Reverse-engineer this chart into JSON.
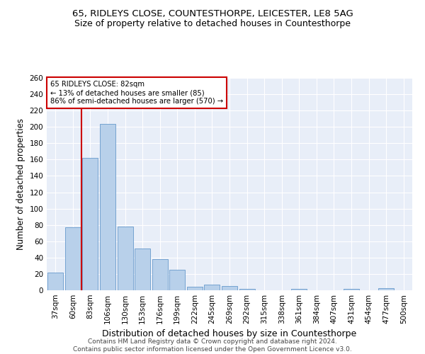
{
  "title1": "65, RIDLEYS CLOSE, COUNTESTHORPE, LEICESTER, LE8 5AG",
  "title2": "Size of property relative to detached houses in Countesthorpe",
  "xlabel": "Distribution of detached houses by size in Countesthorpe",
  "ylabel": "Number of detached properties",
  "footnote": "Contains HM Land Registry data © Crown copyright and database right 2024.\nContains public sector information licensed under the Open Government Licence v3.0.",
  "bar_labels": [
    "37sqm",
    "60sqm",
    "83sqm",
    "106sqm",
    "130sqm",
    "153sqm",
    "176sqm",
    "199sqm",
    "222sqm",
    "245sqm",
    "269sqm",
    "292sqm",
    "315sqm",
    "338sqm",
    "361sqm",
    "384sqm",
    "407sqm",
    "431sqm",
    "454sqm",
    "477sqm",
    "500sqm"
  ],
  "bar_values": [
    22,
    77,
    162,
    204,
    78,
    51,
    38,
    25,
    4,
    7,
    5,
    2,
    0,
    0,
    2,
    0,
    0,
    2,
    0,
    3,
    0
  ],
  "bar_color": "#b8d0ea",
  "bar_edgecolor": "#6699cc",
  "annotation_title": "65 RIDLEYS CLOSE: 82sqm",
  "annotation_line1": "← 13% of detached houses are smaller (85)",
  "annotation_line2": "86% of semi-detached houses are larger (570) →",
  "vline_color": "#cc0000",
  "annotation_box_color": "#cc0000",
  "vline_index": 1.5,
  "ylim": [
    0,
    260
  ],
  "yticks": [
    0,
    20,
    40,
    60,
    80,
    100,
    120,
    140,
    160,
    180,
    200,
    220,
    240,
    260
  ],
  "bg_color": "#e8eef8",
  "title1_fontsize": 9.5,
  "title2_fontsize": 9,
  "xlabel_fontsize": 9,
  "ylabel_fontsize": 8.5,
  "tick_fontsize": 7.5,
  "footnote_fontsize": 6.5
}
